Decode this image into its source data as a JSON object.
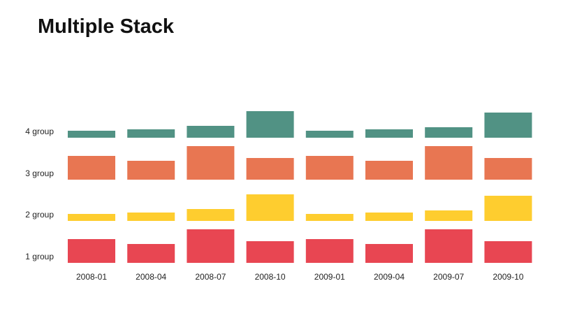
{
  "title": "Multiple Stack",
  "chart_data": {
    "type": "bar",
    "title": "Multiple Stack",
    "categories": [
      "2008-01",
      "2008-04",
      "2008-07",
      "2008-10",
      "2009-01",
      "2009-04",
      "2009-07",
      "2009-10"
    ],
    "groups": [
      "1 group",
      "2 group",
      "3 group",
      "4 group"
    ],
    "colors": {
      "1 group": "#e84652",
      "2 group": "#fecd2f",
      "3 group": "#e87652",
      "4 group": "#519284"
    },
    "series": [
      {
        "group": "1 group",
        "values": [
          34,
          27,
          48,
          31,
          34,
          27,
          48,
          31
        ]
      },
      {
        "group": "2 group",
        "values": [
          10,
          12,
          17,
          38,
          10,
          12,
          15,
          36
        ]
      },
      {
        "group": "3 group",
        "values": [
          34,
          27,
          48,
          31,
          34,
          27,
          48,
          31
        ]
      },
      {
        "group": "4 group",
        "values": [
          10,
          12,
          17,
          38,
          10,
          12,
          15,
          36
        ]
      }
    ],
    "ylim": [
      0,
      60
    ],
    "grid": false,
    "legend": "none"
  }
}
